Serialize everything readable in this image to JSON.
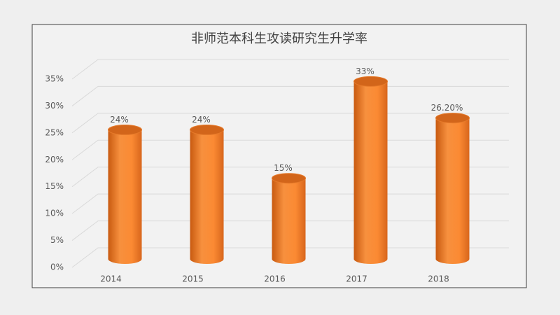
{
  "chart_data": {
    "type": "bar",
    "title": "非师范本科生攻读研究生升学率",
    "categories": [
      "2014",
      "2015",
      "2016",
      "2017",
      "2018"
    ],
    "values": [
      24,
      24,
      15,
      33,
      26.2
    ],
    "value_labels": [
      "24%",
      "24%",
      "15%",
      "33%",
      "26.20%"
    ],
    "color": "#f28030",
    "ylim": [
      0,
      35
    ],
    "yticks": [
      {
        "value": 0,
        "label": "0%"
      },
      {
        "value": 5,
        "label": "5%"
      },
      {
        "value": 10,
        "label": "10%"
      },
      {
        "value": 15,
        "label": "15%"
      },
      {
        "value": 20,
        "label": "20%"
      },
      {
        "value": 25,
        "label": "25%"
      },
      {
        "value": 30,
        "label": "30%"
      },
      {
        "value": 35,
        "label": "35%"
      }
    ],
    "grid": true
  }
}
